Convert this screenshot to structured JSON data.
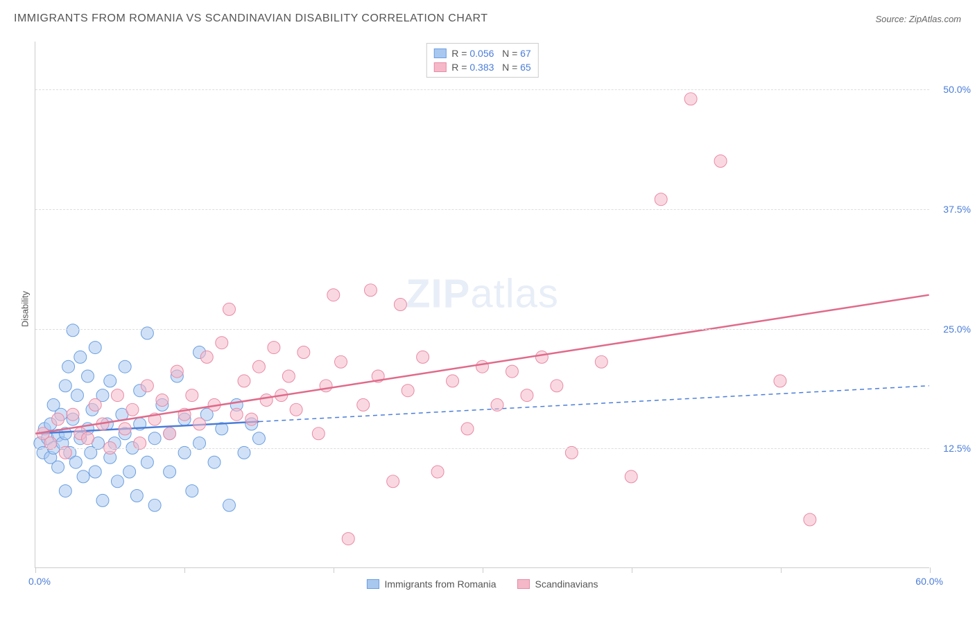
{
  "title": "IMMIGRANTS FROM ROMANIA VS SCANDINAVIAN DISABILITY CORRELATION CHART",
  "source_label": "Source: ZipAtlas.com",
  "watermark_zip": "ZIP",
  "watermark_atlas": "atlas",
  "ylabel": "Disability",
  "chart": {
    "type": "scatter",
    "xlim": [
      0,
      60
    ],
    "ylim": [
      0,
      55
    ],
    "xticks": [
      0,
      10,
      20,
      30,
      40,
      50,
      60
    ],
    "yticks": [
      12.5,
      25.0,
      37.5,
      50.0
    ],
    "xtick_labels": {
      "0": "0.0%",
      "60": "60.0%"
    },
    "ytick_labels": [
      "12.5%",
      "25.0%",
      "37.5%",
      "50.0%"
    ],
    "background_color": "#ffffff",
    "grid_color": "#dddddd",
    "axis_color": "#cccccc",
    "tick_label_color": "#4a7dd8",
    "point_radius": 9,
    "point_opacity": 0.55,
    "trend_line_width": 2.5
  },
  "series": [
    {
      "id": "romania",
      "label": "Immigrants from Romania",
      "fill": "#a9c8f0",
      "stroke": "#6a9ee0",
      "line_color": "#4a7dd8",
      "R": "0.056",
      "N": "67",
      "trend": {
        "x1": 0,
        "y1": 14.0,
        "x2": 60,
        "y2": 19.0,
        "solid_until_x": 15
      },
      "points": [
        [
          0.3,
          13.0
        ],
        [
          0.5,
          12.0
        ],
        [
          0.6,
          14.5
        ],
        [
          0.8,
          13.5
        ],
        [
          1.0,
          15.0
        ],
        [
          1.0,
          11.5
        ],
        [
          1.2,
          12.5
        ],
        [
          1.2,
          17.0
        ],
        [
          1.5,
          13.8
        ],
        [
          1.5,
          10.5
        ],
        [
          1.7,
          16.0
        ],
        [
          1.8,
          13.0
        ],
        [
          2.0,
          14.0
        ],
        [
          2.0,
          19.0
        ],
        [
          2.0,
          8.0
        ],
        [
          2.2,
          21.0
        ],
        [
          2.3,
          12.0
        ],
        [
          2.5,
          15.5
        ],
        [
          2.5,
          24.8
        ],
        [
          2.7,
          11.0
        ],
        [
          2.8,
          18.0
        ],
        [
          3.0,
          13.5
        ],
        [
          3.0,
          22.0
        ],
        [
          3.2,
          9.5
        ],
        [
          3.5,
          20.0
        ],
        [
          3.5,
          14.5
        ],
        [
          3.7,
          12.0
        ],
        [
          3.8,
          16.5
        ],
        [
          4.0,
          23.0
        ],
        [
          4.0,
          10.0
        ],
        [
          4.2,
          13.0
        ],
        [
          4.5,
          18.0
        ],
        [
          4.5,
          7.0
        ],
        [
          4.8,
          15.0
        ],
        [
          5.0,
          11.5
        ],
        [
          5.0,
          19.5
        ],
        [
          5.3,
          13.0
        ],
        [
          5.5,
          9.0
        ],
        [
          5.8,
          16.0
        ],
        [
          6.0,
          14.0
        ],
        [
          6.0,
          21.0
        ],
        [
          6.3,
          10.0
        ],
        [
          6.5,
          12.5
        ],
        [
          6.8,
          7.5
        ],
        [
          7.0,
          15.0
        ],
        [
          7.0,
          18.5
        ],
        [
          7.5,
          11.0
        ],
        [
          7.5,
          24.5
        ],
        [
          8.0,
          13.5
        ],
        [
          8.0,
          6.5
        ],
        [
          8.5,
          17.0
        ],
        [
          9.0,
          14.0
        ],
        [
          9.0,
          10.0
        ],
        [
          9.5,
          20.0
        ],
        [
          10.0,
          15.5
        ],
        [
          10.0,
          12.0
        ],
        [
          10.5,
          8.0
        ],
        [
          11.0,
          22.5
        ],
        [
          11.0,
          13.0
        ],
        [
          11.5,
          16.0
        ],
        [
          12.0,
          11.0
        ],
        [
          12.5,
          14.5
        ],
        [
          13.0,
          6.5
        ],
        [
          13.5,
          17.0
        ],
        [
          14.0,
          12.0
        ],
        [
          14.5,
          15.0
        ],
        [
          15.0,
          13.5
        ]
      ]
    },
    {
      "id": "scandinavian",
      "label": "Scandinavians",
      "fill": "#f5b8c9",
      "stroke": "#e88aa5",
      "line_color": "#e06a8a",
      "R": "0.383",
      "N": "65",
      "trend": {
        "x1": 0,
        "y1": 14.0,
        "x2": 60,
        "y2": 28.5,
        "solid_until_x": 60
      },
      "points": [
        [
          0.5,
          14.0
        ],
        [
          1.0,
          13.0
        ],
        [
          1.5,
          15.5
        ],
        [
          2.0,
          12.0
        ],
        [
          2.5,
          16.0
        ],
        [
          3.0,
          14.0
        ],
        [
          3.5,
          13.5
        ],
        [
          4.0,
          17.0
        ],
        [
          4.5,
          15.0
        ],
        [
          5.0,
          12.5
        ],
        [
          5.5,
          18.0
        ],
        [
          6.0,
          14.5
        ],
        [
          6.5,
          16.5
        ],
        [
          7.0,
          13.0
        ],
        [
          7.5,
          19.0
        ],
        [
          8.0,
          15.5
        ],
        [
          8.5,
          17.5
        ],
        [
          9.0,
          14.0
        ],
        [
          9.5,
          20.5
        ],
        [
          10.0,
          16.0
        ],
        [
          10.5,
          18.0
        ],
        [
          11.0,
          15.0
        ],
        [
          11.5,
          22.0
        ],
        [
          12.0,
          17.0
        ],
        [
          12.5,
          23.5
        ],
        [
          13.0,
          27.0
        ],
        [
          13.5,
          16.0
        ],
        [
          14.0,
          19.5
        ],
        [
          14.5,
          15.5
        ],
        [
          15.0,
          21.0
        ],
        [
          15.5,
          17.5
        ],
        [
          16.0,
          23.0
        ],
        [
          16.5,
          18.0
        ],
        [
          17.0,
          20.0
        ],
        [
          17.5,
          16.5
        ],
        [
          18.0,
          22.5
        ],
        [
          19.0,
          14.0
        ],
        [
          19.5,
          19.0
        ],
        [
          20.0,
          28.5
        ],
        [
          20.5,
          21.5
        ],
        [
          21.0,
          3.0
        ],
        [
          22.0,
          17.0
        ],
        [
          22.5,
          29.0
        ],
        [
          23.0,
          20.0
        ],
        [
          24.0,
          9.0
        ],
        [
          24.5,
          27.5
        ],
        [
          25.0,
          18.5
        ],
        [
          26.0,
          22.0
        ],
        [
          27.0,
          10.0
        ],
        [
          28.0,
          19.5
        ],
        [
          29.0,
          14.5
        ],
        [
          30.0,
          21.0
        ],
        [
          31.0,
          17.0
        ],
        [
          32.0,
          20.5
        ],
        [
          33.0,
          18.0
        ],
        [
          34.0,
          22.0
        ],
        [
          35.0,
          19.0
        ],
        [
          36.0,
          12.0
        ],
        [
          38.0,
          21.5
        ],
        [
          40.0,
          9.5
        ],
        [
          42.0,
          38.5
        ],
        [
          44.0,
          49.0
        ],
        [
          46.0,
          42.5
        ],
        [
          50.0,
          19.5
        ],
        [
          52.0,
          5.0
        ]
      ]
    }
  ],
  "legend": {
    "r_prefix": "R =",
    "n_prefix": "N ="
  }
}
